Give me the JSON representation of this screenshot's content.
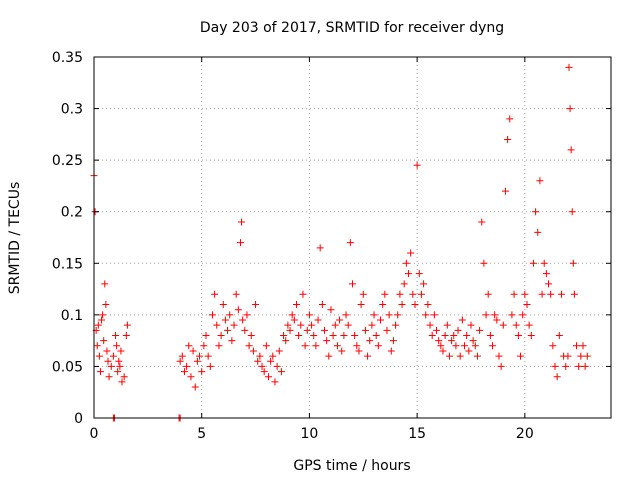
{
  "chart_data": {
    "type": "scatter",
    "title": "Day 203 of 2017, SRMTID for receiver dyng",
    "xlabel": "GPS time / hours",
    "ylabel": "SRMTID / TECUs",
    "xlim": [
      0,
      24
    ],
    "ylim": [
      0,
      0.35
    ],
    "x_ticks": [
      0,
      5,
      10,
      15,
      20
    ],
    "x_tick_labels": [
      "0",
      "5",
      "10",
      "15",
      "20"
    ],
    "y_ticks": [
      0,
      0.05,
      0.1,
      0.15,
      0.2,
      0.25,
      0.3,
      0.35
    ],
    "y_tick_labels": [
      "0",
      "0.05",
      "0.1",
      "0.15",
      "0.2",
      "0.25",
      "0.3",
      "0.35"
    ],
    "grid": true,
    "marker": "plus",
    "colors": {
      "series": "#ff0000",
      "grid": "#a0a0a0",
      "axis": "#000000"
    },
    "series": [
      {
        "name": "SRMTID",
        "x": [
          0.0,
          0.05,
          0.1,
          0.15,
          0.2,
          0.25,
          0.3,
          0.35,
          0.4,
          0.45,
          0.5,
          0.55,
          0.6,
          0.65,
          0.7,
          0.8,
          0.9,
          1.0,
          1.05,
          1.1,
          1.15,
          1.2,
          1.25,
          1.3,
          1.4,
          1.5,
          1.55,
          0.9,
          0.95,
          3.95,
          4.0,
          4.0,
          4.1,
          4.2,
          4.3,
          4.4,
          4.5,
          4.6,
          4.7,
          4.8,
          4.9,
          5.0,
          5.1,
          5.2,
          5.3,
          5.4,
          5.5,
          5.6,
          5.7,
          5.8,
          5.9,
          6.0,
          6.1,
          6.2,
          6.3,
          6.4,
          6.5,
          6.6,
          6.7,
          6.8,
          6.85,
          6.9,
          7.0,
          7.1,
          7.2,
          7.3,
          7.4,
          7.5,
          7.6,
          7.7,
          7.8,
          7.9,
          8.0,
          8.1,
          8.2,
          8.3,
          8.4,
          8.5,
          8.6,
          8.7,
          8.8,
          8.9,
          9.0,
          9.1,
          9.2,
          9.3,
          9.4,
          9.5,
          9.6,
          9.7,
          9.8,
          9.9,
          10.0,
          10.1,
          10.2,
          10.3,
          10.4,
          10.5,
          10.6,
          10.7,
          10.8,
          10.9,
          11.0,
          11.1,
          11.2,
          11.3,
          11.4,
          11.5,
          11.6,
          11.7,
          11.8,
          11.9,
          12.0,
          12.1,
          12.2,
          12.3,
          12.4,
          12.5,
          12.6,
          12.7,
          12.8,
          12.9,
          13.0,
          13.1,
          13.2,
          13.3,
          13.4,
          13.5,
          13.6,
          13.7,
          13.8,
          13.9,
          14.0,
          14.1,
          14.2,
          14.3,
          14.4,
          14.5,
          14.6,
          14.7,
          14.8,
          14.9,
          15.0,
          15.1,
          15.2,
          15.3,
          15.4,
          15.5,
          15.6,
          15.7,
          15.8,
          15.9,
          16.0,
          16.1,
          16.2,
          16.3,
          16.4,
          16.5,
          16.6,
          16.7,
          16.8,
          16.9,
          17.0,
          17.1,
          17.2,
          17.3,
          17.4,
          17.5,
          17.6,
          17.7,
          17.8,
          17.9,
          18.0,
          18.1,
          18.2,
          18.3,
          18.4,
          18.5,
          18.6,
          18.7,
          18.8,
          18.9,
          19.0,
          19.1,
          19.2,
          19.3,
          19.4,
          19.5,
          19.6,
          19.7,
          19.8,
          19.9,
          20.0,
          20.1,
          20.2,
          20.3,
          20.4,
          20.5,
          20.6,
          20.7,
          20.8,
          20.9,
          21.0,
          21.1,
          21.2,
          21.3,
          21.4,
          21.5,
          21.6,
          21.7,
          21.8,
          21.9,
          22.0,
          22.05,
          22.1,
          22.15,
          22.2,
          22.25,
          22.3,
          22.4,
          22.5,
          22.6,
          22.7,
          22.8,
          22.9
        ],
        "y": [
          0.235,
          0.2,
          0.085,
          0.07,
          0.09,
          0.06,
          0.045,
          0.095,
          0.1,
          0.075,
          0.13,
          0.11,
          0.065,
          0.055,
          0.04,
          0.05,
          0.06,
          0.08,
          0.07,
          0.045,
          0.055,
          0.05,
          0.065,
          0.035,
          0.04,
          0.08,
          0.09,
          0.0,
          0.0,
          0.0,
          0.0,
          0.055,
          0.06,
          0.045,
          0.05,
          0.07,
          0.04,
          0.065,
          0.03,
          0.055,
          0.06,
          0.045,
          0.07,
          0.08,
          0.06,
          0.05,
          0.1,
          0.12,
          0.09,
          0.07,
          0.08,
          0.11,
          0.095,
          0.085,
          0.1,
          0.075,
          0.09,
          0.12,
          0.105,
          0.17,
          0.19,
          0.095,
          0.085,
          0.1,
          0.07,
          0.08,
          0.065,
          0.11,
          0.055,
          0.06,
          0.05,
          0.045,
          0.07,
          0.04,
          0.055,
          0.06,
          0.035,
          0.05,
          0.065,
          0.045,
          0.08,
          0.075,
          0.09,
          0.085,
          0.1,
          0.095,
          0.11,
          0.08,
          0.09,
          0.12,
          0.07,
          0.085,
          0.1,
          0.09,
          0.08,
          0.07,
          0.095,
          0.165,
          0.11,
          0.085,
          0.075,
          0.06,
          0.105,
          0.08,
          0.09,
          0.07,
          0.095,
          0.065,
          0.08,
          0.1,
          0.09,
          0.17,
          0.13,
          0.08,
          0.07,
          0.065,
          0.11,
          0.12,
          0.085,
          0.06,
          0.075,
          0.09,
          0.1,
          0.08,
          0.07,
          0.095,
          0.11,
          0.12,
          0.085,
          0.1,
          0.065,
          0.075,
          0.09,
          0.1,
          0.12,
          0.11,
          0.13,
          0.15,
          0.14,
          0.16,
          0.12,
          0.11,
          0.245,
          0.14,
          0.12,
          0.13,
          0.1,
          0.11,
          0.09,
          0.08,
          0.1,
          0.085,
          0.075,
          0.07,
          0.065,
          0.08,
          0.09,
          0.06,
          0.075,
          0.08,
          0.07,
          0.085,
          0.06,
          0.095,
          0.07,
          0.08,
          0.065,
          0.09,
          0.075,
          0.07,
          0.06,
          0.085,
          0.19,
          0.15,
          0.1,
          0.12,
          0.08,
          0.07,
          0.1,
          0.095,
          0.06,
          0.05,
          0.09,
          0.22,
          0.27,
          0.29,
          0.1,
          0.12,
          0.09,
          0.08,
          0.06,
          0.1,
          0.12,
          0.11,
          0.09,
          0.08,
          0.15,
          0.2,
          0.18,
          0.23,
          0.12,
          0.15,
          0.14,
          0.13,
          0.12,
          0.07,
          0.05,
          0.04,
          0.08,
          0.12,
          0.06,
          0.05,
          0.06,
          0.34,
          0.3,
          0.26,
          0.2,
          0.15,
          0.12,
          0.07,
          0.05,
          0.06,
          0.07,
          0.05,
          0.06
        ]
      }
    ]
  }
}
